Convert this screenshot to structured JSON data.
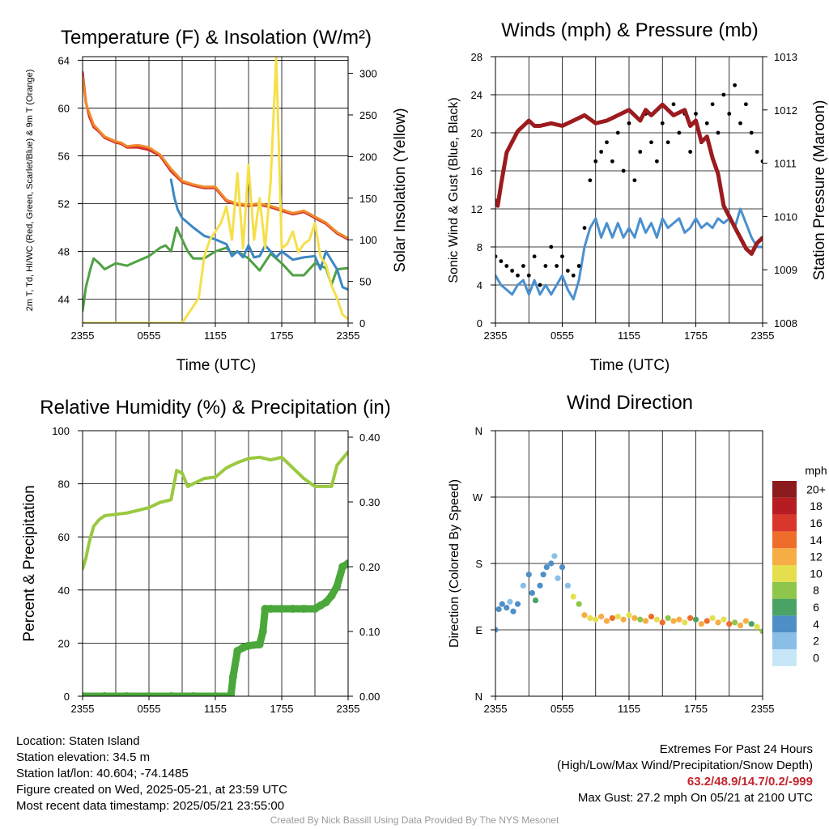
{
  "chart_data": [
    {
      "type": "line",
      "title": "Temperature (F) & Insolation (W/m²)",
      "xlabel": "Time (UTC)",
      "ylabel": "2m T, Td, HI/WC (Red, Green, Scarlet/Blue) & 9m T (Orange)",
      "y2label": "Solar Insolation (Yellow)",
      "x_ticks": [
        "2355",
        "0555",
        "1155",
        "1755",
        "2355"
      ],
      "ylim": [
        42,
        64.3
      ],
      "y_ticks": [
        44,
        48,
        52,
        56,
        60,
        64
      ],
      "y2lim": [
        0,
        320
      ],
      "y2_ticks": [
        0,
        50,
        100,
        150,
        200,
        250,
        300
      ],
      "x_hours": [
        0,
        24
      ],
      "grid": true,
      "series": [
        {
          "color": "#d32f2a",
          "axis": "left",
          "x": [
            0,
            0.3,
            0.6,
            1,
            1.5,
            2,
            2.5,
            3,
            3.5,
            4,
            5,
            6,
            7,
            8,
            9,
            10,
            11,
            12,
            13,
            14,
            15,
            16,
            17,
            18,
            19,
            20,
            21,
            22,
            23,
            24
          ],
          "y": [
            63,
            60.5,
            59.3,
            58.4,
            58,
            57.5,
            57.3,
            57.1,
            57,
            56.7,
            56.7,
            56.5,
            56,
            54.7,
            53.8,
            53.5,
            53.3,
            53.3,
            52.2,
            51.9,
            51.8,
            51.9,
            51.7,
            51.4,
            51.1,
            51.3,
            50.8,
            50.3,
            49.5,
            49
          ]
        },
        {
          "color": "#f08a2c",
          "axis": "left",
          "x": [
            0,
            0.3,
            0.6,
            1,
            1.5,
            2,
            2.5,
            3,
            3.5,
            4,
            5,
            6,
            7,
            8,
            9,
            10,
            11,
            12,
            13,
            14,
            15,
            16,
            17,
            18,
            19,
            20,
            21,
            22,
            23,
            24
          ],
          "y": [
            62.6,
            60.4,
            59.6,
            58.6,
            58.1,
            57.6,
            57.4,
            57.2,
            57.1,
            56.8,
            56.9,
            56.7,
            56.1,
            54.9,
            53.9,
            53.6,
            53.4,
            53.4,
            52.3,
            52,
            51.9,
            52,
            51.8,
            51.5,
            51.2,
            51.4,
            50.9,
            50.4,
            49.6,
            49.1
          ]
        },
        {
          "color": "#4fa144",
          "axis": "left",
          "x": [
            0,
            0.3,
            0.7,
            1,
            1.5,
            2,
            3,
            4,
            5,
            6,
            7,
            7.5,
            8,
            8.5,
            9,
            9.5,
            10,
            11,
            12,
            13,
            13.5,
            14,
            15,
            16,
            17,
            18,
            19,
            20,
            21,
            22,
            22.5,
            23,
            24
          ],
          "y": [
            43,
            45,
            46.5,
            47.4,
            47,
            46.5,
            47,
            46.8,
            47.2,
            47.6,
            48.3,
            48.5,
            48,
            50,
            49,
            48,
            47.4,
            47.4,
            48,
            48.3,
            47.8,
            48,
            47.4,
            46.4,
            47.8,
            47,
            46,
            46,
            47,
            46.6,
            45.2,
            46.5,
            46.6
          ]
        },
        {
          "color": "#3c87c4",
          "axis": "left",
          "x": [
            8,
            8.3,
            8.6,
            9,
            10,
            11,
            12,
            13,
            13.5,
            14,
            14.5,
            15,
            15.5,
            16,
            16.5,
            17,
            17.5,
            18,
            19,
            20,
            21,
            21.5,
            22,
            23,
            23.5,
            24
          ],
          "y": [
            54,
            52.5,
            51.5,
            50.8,
            50,
            49.3,
            49,
            48.6,
            47.6,
            48,
            47.5,
            48.5,
            47.5,
            47.6,
            48.5,
            48,
            47.5,
            48,
            47.3,
            47.5,
            47.6,
            46.5,
            48,
            46.5,
            45,
            44.8
          ]
        },
        {
          "color": "#f5e04a",
          "axis": "right",
          "x": [
            0,
            5,
            9,
            9.5,
            10,
            10.5,
            11,
            11.5,
            12,
            12.5,
            13,
            13.5,
            14,
            14.5,
            15,
            15.5,
            16,
            16.5,
            17,
            17.5,
            18,
            18.5,
            19,
            19.5,
            20,
            20.5,
            21,
            21.5,
            22,
            22.5,
            23,
            23.5,
            24
          ],
          "y": [
            0,
            0,
            0,
            10,
            20,
            30,
            80,
            100,
            110,
            120,
            140,
            100,
            180,
            90,
            190,
            100,
            150,
            90,
            170,
            320,
            90,
            95,
            110,
            85,
            95,
            100,
            120,
            80,
            70,
            45,
            30,
            10,
            5
          ]
        }
      ]
    },
    {
      "type": "line",
      "title": "Winds (mph) & Pressure (mb)",
      "xlabel": "Time (UTC)",
      "ylabel": "Sonic Wind & Gust (Blue, Black)",
      "y2label": "Station Pressure (Maroon)",
      "x_ticks": [
        "2355",
        "0555",
        "1155",
        "1755",
        "2355"
      ],
      "ylim": [
        0,
        28
      ],
      "y_ticks": [
        0,
        4,
        8,
        12,
        16,
        20,
        24,
        28
      ],
      "y2lim": [
        1008,
        1013
      ],
      "y2_ticks": [
        1008,
        1009,
        1010,
        1011,
        1012,
        1013
      ],
      "x_hours": [
        0,
        24
      ],
      "grid": true,
      "series": [
        {
          "color": "#4a90cf",
          "axis": "left",
          "x": [
            0,
            0.5,
            1,
            1.5,
            2,
            2.5,
            3,
            3.5,
            4,
            4.5,
            5,
            5.5,
            6,
            6.5,
            7,
            7.5,
            8,
            8.5,
            9,
            9.5,
            10,
            10.5,
            11,
            11.5,
            12,
            12.5,
            13,
            13.5,
            14,
            14.5,
            15,
            15.5,
            16,
            16.5,
            17,
            17.5,
            18,
            18.5,
            19,
            19.5,
            20,
            20.5,
            21,
            21.5,
            22,
            22.5,
            23,
            23.5,
            24
          ],
          "y": [
            5,
            4,
            3.5,
            3,
            4,
            4.5,
            3,
            4.5,
            3,
            4,
            3,
            4,
            5,
            3.5,
            2.5,
            4.5,
            8,
            10,
            11,
            9,
            10.5,
            9,
            10.5,
            9,
            10,
            9,
            11,
            9.5,
            10.5,
            9,
            11,
            10,
            10.5,
            11,
            9.5,
            10,
            11,
            10,
            10.5,
            10,
            11,
            10.5,
            11,
            10,
            12,
            10.5,
            9,
            8,
            8
          ]
        },
        {
          "color": "#000000",
          "axis": "left",
          "marker": "dot",
          "x": [
            0,
            0.5,
            1,
            1.5,
            2,
            2.5,
            3,
            3.5,
            4,
            4.5,
            5,
            5.5,
            6,
            6.5,
            7,
            7.5,
            8,
            8.5,
            9,
            9.5,
            10,
            10.5,
            11,
            11.5,
            12,
            12.5,
            13,
            13.5,
            14,
            14.5,
            15,
            15.5,
            16,
            16.5,
            17,
            17.5,
            18,
            18.5,
            19,
            19.5,
            20,
            20.5,
            21,
            21.5,
            22,
            22.5,
            23,
            23.5,
            24
          ],
          "y": [
            7,
            6.5,
            6,
            5.5,
            5,
            6,
            5,
            7,
            4,
            6,
            8,
            6,
            7,
            5.5,
            5,
            6,
            10,
            15,
            17,
            18,
            19,
            17,
            20,
            16,
            21,
            15,
            18,
            22,
            19,
            17,
            21,
            19,
            23,
            20,
            22,
            18,
            22,
            19,
            21,
            23,
            20,
            24,
            22,
            25,
            21,
            23,
            20,
            18,
            17
          ]
        },
        {
          "color": "#9b1b1e",
          "axis": "right",
          "x": [
            0,
            0.2,
            0.5,
            1,
            1.5,
            2,
            2.5,
            3,
            3.5,
            4,
            5,
            6,
            7,
            8,
            9,
            10,
            11,
            12,
            13,
            13.5,
            14,
            15,
            16,
            17,
            17.5,
            18,
            18.5,
            19,
            19.5,
            20,
            20.5,
            21,
            21.5,
            22,
            22.5,
            23,
            23.5,
            24
          ],
          "y": [
            1010.3,
            1010.2,
            1010.6,
            1011.2,
            1011.4,
            1011.6,
            1011.7,
            1011.8,
            1011.7,
            1011.7,
            1011.75,
            1011.7,
            1011.8,
            1011.9,
            1011.75,
            1011.8,
            1011.9,
            1012,
            1011.8,
            1012,
            1011.9,
            1012.1,
            1011.9,
            1012.0,
            1011.7,
            1011.8,
            1011.4,
            1011.5,
            1011.1,
            1010.8,
            1010.2,
            1010.0,
            1009.8,
            1009.6,
            1009.4,
            1009.3,
            1009.5,
            1009.6
          ]
        }
      ]
    },
    {
      "type": "line",
      "title": "Relative Humidity (%) & Precipitation (in)",
      "xlabel": "",
      "ylabel": "Percent & Precipitation",
      "x_ticks": [
        "2355",
        "0555",
        "1155",
        "1755",
        "2355"
      ],
      "ylim": [
        0,
        100
      ],
      "y_ticks": [
        0,
        20,
        40,
        60,
        80,
        100
      ],
      "y2lim": [
        0,
        0.41
      ],
      "y2_ticks": [
        "0.00",
        "0.10",
        "0.20",
        "0.30",
        "0.40"
      ],
      "x_hours": [
        0,
        24
      ],
      "grid": true,
      "series": [
        {
          "color": "#9ac93f",
          "axis": "left",
          "x": [
            0,
            0.3,
            0.6,
            1,
            1.5,
            2,
            3,
            4,
            5,
            6,
            7,
            7.5,
            8,
            8.5,
            9,
            9.5,
            10,
            11,
            12,
            13,
            13.5,
            14,
            15,
            16,
            17,
            18,
            19,
            20,
            21,
            22,
            22.5,
            23,
            24
          ],
          "y": [
            48,
            52,
            58,
            64,
            66.5,
            68,
            68.5,
            69,
            70,
            71,
            73,
            73.5,
            74,
            85,
            84,
            79,
            80,
            82,
            82.5,
            86,
            87,
            88,
            89.5,
            90,
            89,
            90,
            86,
            82,
            79,
            79,
            79,
            87,
            92
          ]
        },
        {
          "color": "#4aa83a",
          "axis": "right",
          "marker": "dot",
          "x": [
            0,
            2,
            4,
            6,
            8,
            10,
            12,
            13.4,
            13.6,
            14,
            14.5,
            15,
            16,
            16.3,
            16.5,
            17,
            18,
            19,
            20,
            21,
            21.5,
            22,
            22.5,
            23,
            23.5,
            24
          ],
          "y": [
            0,
            0,
            0,
            0,
            0,
            0,
            0,
            0,
            0.03,
            0.07,
            0.075,
            0.078,
            0.08,
            0.1,
            0.135,
            0.135,
            0.135,
            0.135,
            0.135,
            0.135,
            0.14,
            0.145,
            0.155,
            0.17,
            0.2,
            0.205
          ]
        }
      ]
    },
    {
      "type": "scatter",
      "title": "Wind Direction",
      "xlabel": "",
      "ylabel": "Direction (Colored By Speed)",
      "x_ticks": [
        "2355",
        "0555",
        "1155",
        "1755",
        "2355"
      ],
      "y_ticks": [
        "N",
        "E",
        "S",
        "W",
        "N"
      ],
      "ylim": [
        0,
        360
      ],
      "x_hours": [
        0,
        24
      ],
      "grid": true,
      "legend_title": "mph",
      "legend_labels": [
        "0",
        "2",
        "4",
        "6",
        "8",
        "10",
        "12",
        "14",
        "16",
        "18",
        "20+"
      ],
      "legend_colors": [
        "#c7e6f7",
        "#89bfe6",
        "#4f8fc7",
        "#4aa364",
        "#8dc64a",
        "#e5df4d",
        "#f6ad44",
        "#ef6d2b",
        "#d9372b",
        "#b71c22",
        "#8c1b1d"
      ],
      "x": [
        0,
        0.3,
        0.6,
        1,
        1.3,
        1.6,
        2,
        2.5,
        3,
        3.3,
        3.6,
        4,
        4.3,
        4.6,
        5,
        5.3,
        5.6,
        6,
        6.5,
        7,
        7.5,
        8,
        8.5,
        9,
        9.5,
        10,
        10.5,
        11,
        11.5,
        12,
        12.5,
        13,
        13.5,
        14,
        14.5,
        15,
        15.5,
        16,
        16.5,
        17,
        17.5,
        18,
        18.5,
        19,
        19.5,
        20,
        20.5,
        21,
        21.5,
        22,
        22.5,
        23,
        23.5,
        24
      ],
      "y": [
        90,
        118,
        125,
        120,
        128,
        115,
        125,
        150,
        165,
        140,
        130,
        150,
        165,
        175,
        180,
        190,
        160,
        175,
        150,
        135,
        125,
        110,
        106,
        104,
        108,
        102,
        106,
        108,
        104,
        110,
        106,
        104,
        102,
        108,
        104,
        100,
        106,
        102,
        104,
        100,
        106,
        104,
        98,
        102,
        106,
        100,
        104,
        98,
        100,
        96,
        102,
        98,
        94,
        88
      ],
      "speed": [
        4,
        4,
        3,
        3,
        2,
        4,
        3,
        2,
        3,
        4,
        6,
        3,
        4,
        3,
        4,
        2,
        2,
        3,
        2,
        10,
        8,
        12,
        10,
        9,
        11,
        12,
        13,
        10,
        12,
        9,
        11,
        8,
        12,
        14,
        10,
        13,
        7,
        11,
        12,
        10,
        13,
        6,
        11,
        14,
        9,
        12,
        10,
        13,
        8,
        12,
        11,
        6,
        9,
        7
      ]
    }
  ],
  "info": {
    "location": "Location: Staten Island",
    "elevation": "Station elevation: 34.5 m",
    "latlon": "Station lat/lon: 40.604; -74.1485",
    "created": "Figure created on Wed, 2025-05-21, at 23:59 UTC",
    "recent": "Most recent data timestamp: 2025/05/21 23:55:00"
  },
  "extremes": {
    "title": "Extremes For Past 24 Hours",
    "subtitle": "(High/Low/Max Wind/Precipitation/Snow Depth)",
    "values": "63.2/48.9/14.7/0.2/-999",
    "gust": "Max Gust: 27.2 mph On 05/21 at 2100 UTC"
  },
  "credit": "Created By Nick Bassill Using Data Provided By The NYS Mesonet"
}
